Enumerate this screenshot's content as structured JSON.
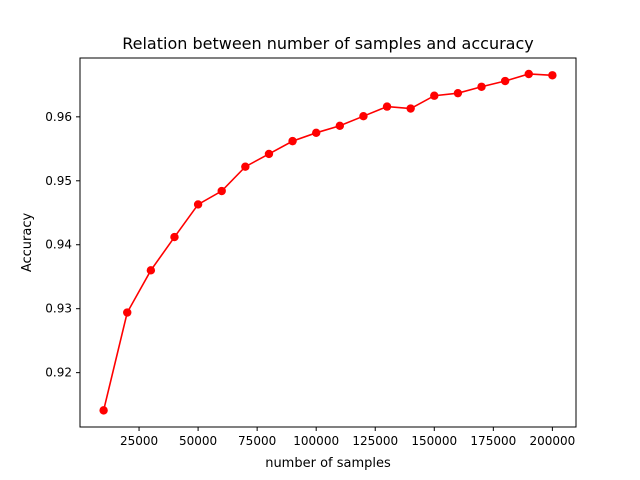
{
  "chart_data": {
    "type": "line",
    "title": "Relation between number of samples and accuracy",
    "xlabel": "number of samples",
    "ylabel": "Accuracy",
    "xlim": [
      0,
      210000
    ],
    "ylim": [
      0.9115,
      0.9692
    ],
    "grid": false,
    "legend": "none",
    "x_ticks": [
      25000,
      50000,
      75000,
      100000,
      125000,
      150000,
      175000,
      200000
    ],
    "y_ticks": [
      0.92,
      0.93,
      0.94,
      0.95,
      0.96
    ],
    "series": [
      {
        "color": "#ff0000",
        "marker": "circle",
        "x": [
          10000,
          20000,
          30000,
          40000,
          50000,
          60000,
          70000,
          80000,
          90000,
          100000,
          110000,
          120000,
          130000,
          140000,
          150000,
          160000,
          170000,
          180000,
          190000,
          200000
        ],
        "values": [
          0.9141,
          0.9294,
          0.936,
          0.9412,
          0.9463,
          0.9484,
          0.9522,
          0.9542,
          0.9562,
          0.9575,
          0.9586,
          0.9601,
          0.9616,
          0.9613,
          0.9633,
          0.9637,
          0.9647,
          0.9656,
          0.9667,
          0.9665
        ]
      }
    ]
  }
}
